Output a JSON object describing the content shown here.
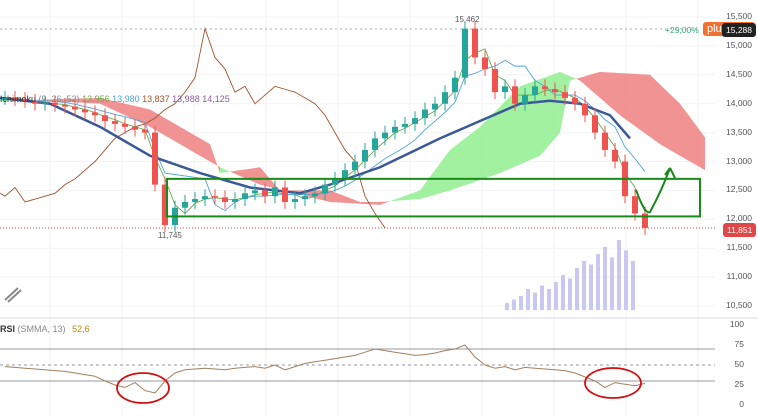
{
  "header": {
    "indicator_name": "Ichimoku",
    "indicator_params": "(9, 26, 52)",
    "values": [
      {
        "text": "13,956",
        "color": "#6aa84f"
      },
      {
        "text": "13,980",
        "color": "#4fa3d9"
      },
      {
        "text": "13,837",
        "color": "#a0522d"
      },
      {
        "text": "13,988",
        "color": "#8e5ea2"
      },
      {
        "text": "14,125",
        "color": "#8e5ea2"
      }
    ]
  },
  "price_tags": {
    "change_pct": "+29,00%",
    "current_top": "15,288",
    "last_price": "11,851",
    "high_label": "15,462",
    "low_label": "11,745",
    "add_icon": "plus-icon"
  },
  "rsi_header": {
    "name": "RSI",
    "params": "(SMMA, 13)",
    "value": "52,6"
  },
  "colors": {
    "up": "#26a69a",
    "down": "#ef5350",
    "cloud_bull": "#90ee90",
    "cloud_bear": "#f08080",
    "sma": "#3b5998",
    "annotation_green": "#1a8a1a",
    "annotation_red": "#d01010"
  },
  "chart_data": {
    "type": "candlestick",
    "price_axis": {
      "ticks": [
        "15,500",
        "15,000",
        "14,500",
        "14,000",
        "13,500",
        "13,000",
        "12,500",
        "12,000",
        "11,500",
        "11,000",
        "10,500"
      ],
      "range": [
        10500,
        15500
      ]
    },
    "rsi_axis": {
      "ticks": [
        "100",
        "75",
        "50",
        "25",
        "0"
      ],
      "range": [
        0,
        100
      ],
      "levels": [
        70,
        50,
        30
      ]
    },
    "closes": [
      14100,
      14080,
      14050,
      14000,
      14020,
      13980,
      13950,
      13900,
      13850,
      13800,
      13700,
      13650,
      13600,
      13550,
      13500,
      12600,
      11900,
      12200,
      12300,
      12350,
      12400,
      12380,
      12300,
      12350,
      12450,
      12500,
      12400,
      12550,
      12300,
      12350,
      12400,
      12450,
      12600,
      12700,
      12850,
      13000,
      13200,
      13400,
      13500,
      13600,
      13650,
      13750,
      13900,
      14000,
      14200,
      14450,
      15300,
      14800,
      14600,
      14200,
      14300,
      14000,
      14150,
      14300,
      14250,
      14200,
      14100,
      14000,
      13800,
      13500,
      13200,
      13000,
      12400,
      12100,
      11851
    ],
    "ichimoku_span_a": [
      [
        0,
        14100
      ],
      [
        10,
        14000
      ],
      [
        15,
        13600
      ],
      [
        22,
        12900
      ],
      [
        26,
        12600
      ],
      [
        33,
        12300
      ],
      [
        38,
        12250
      ],
      [
        42,
        12500
      ],
      [
        45,
        13200
      ],
      [
        48,
        13600
      ],
      [
        52,
        14300
      ],
      [
        56,
        14550
      ],
      [
        58,
        14400
      ],
      [
        62,
        13800
      ],
      [
        66,
        13300
      ],
      [
        71,
        12800
      ]
    ],
    "ichimoku_span_b": [
      [
        0,
        14050
      ],
      [
        10,
        14100
      ],
      [
        15,
        13900
      ],
      [
        17,
        13700
      ],
      [
        21,
        13300
      ],
      [
        22,
        12800
      ],
      [
        26,
        12900
      ],
      [
        28,
        12500
      ],
      [
        33,
        12500
      ],
      [
        36,
        12300
      ],
      [
        38,
        12300
      ],
      [
        42,
        12350
      ],
      [
        45,
        12500
      ],
      [
        50,
        12800
      ],
      [
        54,
        13100
      ],
      [
        56,
        13500
      ],
      [
        57,
        14400
      ],
      [
        60,
        14550
      ],
      [
        65,
        14500
      ],
      [
        68,
        14000
      ],
      [
        71,
        13300
      ]
    ],
    "sma": [
      [
        0,
        14100
      ],
      [
        5,
        14000
      ],
      [
        10,
        13600
      ],
      [
        15,
        13100
      ],
      [
        20,
        12800
      ],
      [
        25,
        12550
      ],
      [
        30,
        12450
      ],
      [
        33,
        12600
      ],
      [
        38,
        12900
      ],
      [
        44,
        13400
      ],
      [
        48,
        13700
      ],
      [
        52,
        14000
      ],
      [
        55,
        14050
      ],
      [
        58,
        14000
      ],
      [
        61,
        13800
      ],
      [
        63,
        13400
      ]
    ],
    "volume_relative": [
      0.1,
      0.15,
      0.2,
      0.3,
      0.25,
      0.35,
      0.3,
      0.4,
      0.5,
      0.45,
      0.6,
      0.7,
      0.65,
      0.8,
      0.9,
      0.75,
      1.0,
      0.85,
      0.7
    ],
    "rsi": [
      48,
      47,
      46,
      45,
      44,
      43,
      42,
      40,
      38,
      36,
      30,
      25,
      22,
      28,
      18,
      15,
      30,
      40,
      44,
      45,
      46,
      45,
      44,
      46,
      47,
      48,
      46,
      50,
      44,
      48,
      52,
      54,
      56,
      58,
      60,
      62,
      66,
      70,
      68,
      66,
      64,
      62,
      63,
      65,
      68,
      70,
      75,
      60,
      50,
      46,
      48,
      44,
      47,
      46,
      45,
      44,
      43,
      40,
      35,
      30,
      22,
      28,
      26,
      24,
      27
    ],
    "box_annotation": {
      "price_top": 12700,
      "price_bottom": 12050
    }
  }
}
